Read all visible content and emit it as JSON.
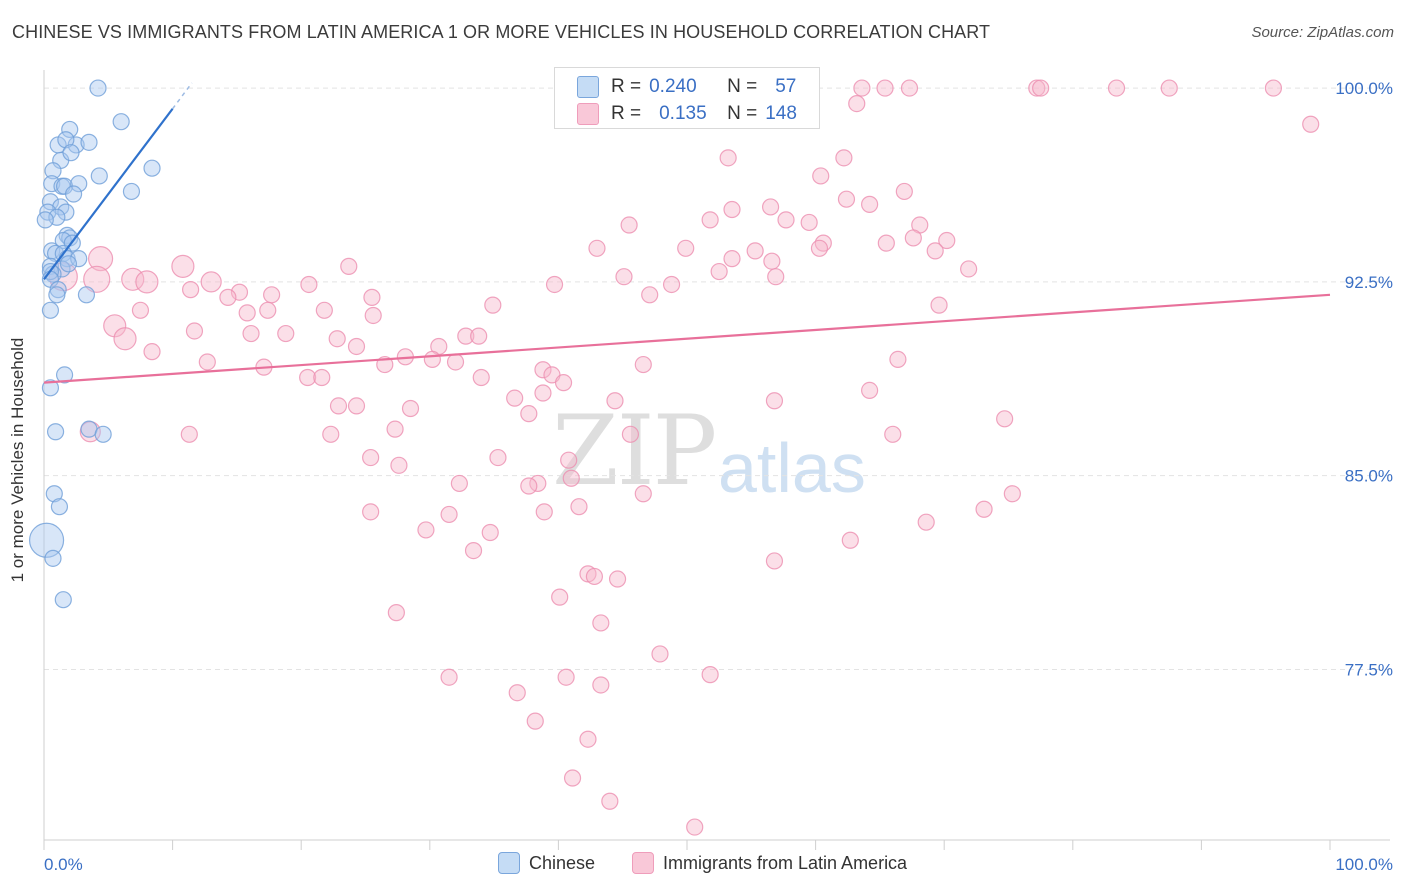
{
  "header": {
    "title": "CHINESE VS IMMIGRANTS FROM LATIN AMERICA 1 OR MORE VEHICLES IN HOUSEHOLD CORRELATION CHART",
    "source": "Source: ZipAtlas.com"
  },
  "stats": {
    "r_label": "R =",
    "n_label": "N =",
    "chinese": {
      "r": "0.240",
      "n": "57"
    },
    "latin": {
      "r": "0.135",
      "n": "148"
    }
  },
  "watermark": {
    "zip": "ZIP",
    "atlas": "atlas"
  },
  "colors": {
    "chinese_fill": "#a9c8ef",
    "chinese_stroke": "#6f9fd8",
    "chinese_line": "#2f72cc",
    "latin_fill": "#f6b8cc",
    "latin_stroke": "#ec8fb0",
    "latin_line": "#e8709a",
    "axis_label": "#3a6fc4",
    "grid": "#e3e3e3"
  },
  "chart_data": {
    "type": "scatter",
    "title": "CHINESE VS IMMIGRANTS FROM LATIN AMERICA 1 OR MORE VEHICLES IN HOUSEHOLD CORRELATION CHART",
    "xlabel": "",
    "ylabel": "1 or more Vehicles in Household",
    "x_tick_labels": [
      "0.0%",
      "100.0%"
    ],
    "y_tick_labels": [
      "100.0%",
      "92.5%",
      "85.0%",
      "77.5%"
    ],
    "y_ticks": [
      100.0,
      92.5,
      85.0,
      77.5
    ],
    "xlim": [
      0,
      100
    ],
    "ylim": [
      70.9,
      100.7
    ],
    "grid": true,
    "legend_position": "bottom-center",
    "series": [
      {
        "name": "Chinese",
        "trend": {
          "x0": 0.0,
          "y0": 92.6,
          "x1": 10.0,
          "y1": 99.2,
          "dashed_to_x": 11.5,
          "dashed_to_y": 100.2
        },
        "points": [
          [
            4.2,
            100.0,
            8
          ],
          [
            6.0,
            98.7,
            8
          ],
          [
            2.0,
            98.4,
            8
          ],
          [
            1.1,
            97.8,
            8
          ],
          [
            2.5,
            97.8,
            8
          ],
          [
            1.7,
            98.0,
            8
          ],
          [
            3.5,
            97.9,
            8
          ],
          [
            1.3,
            97.2,
            8
          ],
          [
            2.1,
            97.5,
            8
          ],
          [
            0.7,
            96.8,
            8
          ],
          [
            8.4,
            96.9,
            8
          ],
          [
            4.3,
            96.6,
            8
          ],
          [
            0.6,
            96.3,
            8
          ],
          [
            1.4,
            96.2,
            8
          ],
          [
            1.6,
            96.2,
            8
          ],
          [
            2.7,
            96.3,
            8
          ],
          [
            2.3,
            95.9,
            8
          ],
          [
            6.8,
            96.0,
            8
          ],
          [
            0.5,
            95.6,
            8
          ],
          [
            1.3,
            95.4,
            8
          ],
          [
            1.7,
            95.2,
            8
          ],
          [
            0.3,
            95.2,
            8
          ],
          [
            1.0,
            95.0,
            8
          ],
          [
            0.1,
            94.9,
            8
          ],
          [
            1.8,
            94.3,
            8
          ],
          [
            2.0,
            94.2,
            8
          ],
          [
            1.5,
            94.1,
            8
          ],
          [
            2.2,
            94.0,
            8
          ],
          [
            0.6,
            93.7,
            8
          ],
          [
            0.9,
            93.6,
            8
          ],
          [
            1.5,
            93.6,
            8
          ],
          [
            1.8,
            93.4,
            8
          ],
          [
            2.7,
            93.4,
            8
          ],
          [
            0.5,
            93.1,
            8
          ],
          [
            1.4,
            93.0,
            8
          ],
          [
            1.9,
            93.2,
            8
          ],
          [
            0.7,
            92.8,
            8
          ],
          [
            0.5,
            92.9,
            8
          ],
          [
            0.5,
            92.6,
            8
          ],
          [
            1.1,
            92.2,
            8
          ],
          [
            3.3,
            92.0,
            8
          ],
          [
            1.0,
            92.0,
            8
          ],
          [
            0.5,
            91.4,
            8
          ],
          [
            1.6,
            88.9,
            8
          ],
          [
            0.5,
            88.4,
            8
          ],
          [
            0.9,
            86.7,
            8
          ],
          [
            3.5,
            86.8,
            8
          ],
          [
            4.6,
            86.6,
            8
          ],
          [
            0.8,
            84.3,
            8
          ],
          [
            1.2,
            83.8,
            8
          ],
          [
            0.2,
            82.5,
            17
          ],
          [
            0.7,
            81.8,
            8
          ],
          [
            1.5,
            80.2,
            8
          ]
        ]
      },
      {
        "name": "Immigrants from Latin America",
        "trend": {
          "x0": 0.0,
          "y0": 88.6,
          "x1": 100.0,
          "y1": 92.0
        },
        "points": [
          [
            63.6,
            100.0,
            8
          ],
          [
            65.4,
            100.0,
            8
          ],
          [
            67.3,
            100.0,
            8
          ],
          [
            77.2,
            100.0,
            8
          ],
          [
            77.5,
            100.0,
            8
          ],
          [
            83.4,
            100.0,
            8
          ],
          [
            87.5,
            100.0,
            8
          ],
          [
            95.6,
            100.0,
            8
          ],
          [
            63.2,
            99.4,
            8
          ],
          [
            98.5,
            98.6,
            8
          ],
          [
            53.2,
            97.3,
            8
          ],
          [
            62.2,
            97.3,
            8
          ],
          [
            60.4,
            96.6,
            8
          ],
          [
            66.9,
            96.0,
            8
          ],
          [
            62.4,
            95.7,
            8
          ],
          [
            53.5,
            95.3,
            8
          ],
          [
            56.5,
            95.4,
            8
          ],
          [
            64.2,
            95.5,
            8
          ],
          [
            51.8,
            94.9,
            8
          ],
          [
            57.7,
            94.9,
            8
          ],
          [
            59.5,
            94.8,
            8
          ],
          [
            45.5,
            94.7,
            8
          ],
          [
            68.1,
            94.7,
            8
          ],
          [
            67.6,
            94.2,
            8
          ],
          [
            65.5,
            94.0,
            8
          ],
          [
            60.6,
            94.0,
            8
          ],
          [
            70.2,
            94.1,
            8
          ],
          [
            43.0,
            93.8,
            8
          ],
          [
            49.9,
            93.8,
            8
          ],
          [
            55.3,
            93.7,
            8
          ],
          [
            60.3,
            93.8,
            8
          ],
          [
            69.3,
            93.7,
            8
          ],
          [
            53.5,
            93.4,
            8
          ],
          [
            56.6,
            93.3,
            8
          ],
          [
            4.4,
            93.4,
            12
          ],
          [
            10.8,
            93.1,
            11
          ],
          [
            23.7,
            93.1,
            8
          ],
          [
            71.9,
            93.0,
            8
          ],
          [
            1.5,
            92.7,
            14
          ],
          [
            4.1,
            92.6,
            13
          ],
          [
            6.9,
            92.6,
            11
          ],
          [
            8.0,
            92.5,
            11
          ],
          [
            13.0,
            92.5,
            10
          ],
          [
            20.6,
            92.4,
            8
          ],
          [
            39.7,
            92.4,
            8
          ],
          [
            45.1,
            92.7,
            8
          ],
          [
            52.5,
            92.9,
            8
          ],
          [
            56.9,
            92.7,
            8
          ],
          [
            48.8,
            92.4,
            8
          ],
          [
            47.1,
            92.0,
            8
          ],
          [
            11.4,
            92.2,
            8
          ],
          [
            15.2,
            92.1,
            8
          ],
          [
            17.7,
            92.0,
            8
          ],
          [
            14.3,
            91.9,
            8
          ],
          [
            25.5,
            91.9,
            8
          ],
          [
            34.9,
            91.6,
            8
          ],
          [
            69.6,
            91.6,
            8
          ],
          [
            7.5,
            91.4,
            8
          ],
          [
            15.8,
            91.3,
            8
          ],
          [
            17.4,
            91.4,
            8
          ],
          [
            21.8,
            91.4,
            8
          ],
          [
            25.6,
            91.2,
            8
          ],
          [
            5.5,
            90.8,
            11
          ],
          [
            11.7,
            90.6,
            8
          ],
          [
            16.1,
            90.5,
            8
          ],
          [
            18.8,
            90.5,
            8
          ],
          [
            22.8,
            90.3,
            8
          ],
          [
            32.8,
            90.4,
            8
          ],
          [
            33.8,
            90.4,
            8
          ],
          [
            24.3,
            90.0,
            8
          ],
          [
            30.7,
            90.0,
            8
          ],
          [
            6.3,
            90.3,
            11
          ],
          [
            8.4,
            89.8,
            8
          ],
          [
            12.7,
            89.4,
            8
          ],
          [
            17.1,
            89.2,
            8
          ],
          [
            26.5,
            89.3,
            8
          ],
          [
            28.1,
            89.6,
            8
          ],
          [
            30.2,
            89.5,
            8
          ],
          [
            32.0,
            89.4,
            8
          ],
          [
            46.6,
            89.3,
            8
          ],
          [
            66.4,
            89.5,
            8
          ],
          [
            38.8,
            89.1,
            8
          ],
          [
            39.5,
            88.9,
            8
          ],
          [
            20.5,
            88.8,
            8
          ],
          [
            21.6,
            88.8,
            8
          ],
          [
            40.4,
            88.6,
            8
          ],
          [
            34.0,
            88.8,
            8
          ],
          [
            38.8,
            88.2,
            8
          ],
          [
            44.4,
            87.9,
            8
          ],
          [
            56.8,
            87.9,
            8
          ],
          [
            64.2,
            88.3,
            8
          ],
          [
            36.6,
            88.0,
            8
          ],
          [
            22.9,
            87.7,
            8
          ],
          [
            24.3,
            87.7,
            8
          ],
          [
            28.5,
            87.6,
            8
          ],
          [
            37.7,
            87.4,
            8
          ],
          [
            74.7,
            87.2,
            8
          ],
          [
            27.3,
            86.8,
            8
          ],
          [
            3.6,
            86.7,
            10
          ],
          [
            11.3,
            86.6,
            8
          ],
          [
            22.3,
            86.6,
            8
          ],
          [
            45.6,
            86.6,
            8
          ],
          [
            66.0,
            86.6,
            8
          ],
          [
            25.4,
            85.7,
            8
          ],
          [
            27.6,
            85.4,
            8
          ],
          [
            40.8,
            85.6,
            8
          ],
          [
            35.3,
            85.7,
            8
          ],
          [
            32.3,
            84.7,
            8
          ],
          [
            41.0,
            84.9,
            8
          ],
          [
            38.4,
            84.7,
            8
          ],
          [
            37.7,
            84.6,
            8
          ],
          [
            46.6,
            84.3,
            8
          ],
          [
            41.6,
            83.8,
            8
          ],
          [
            38.9,
            83.6,
            8
          ],
          [
            31.5,
            83.5,
            8
          ],
          [
            25.4,
            83.6,
            8
          ],
          [
            29.7,
            82.9,
            8
          ],
          [
            34.7,
            82.8,
            8
          ],
          [
            62.7,
            82.5,
            8
          ],
          [
            68.6,
            83.2,
            8
          ],
          [
            73.1,
            83.7,
            8
          ],
          [
            75.3,
            84.3,
            8
          ],
          [
            33.4,
            82.1,
            8
          ],
          [
            56.8,
            81.7,
            8
          ],
          [
            42.3,
            81.2,
            8
          ],
          [
            42.8,
            81.1,
            8
          ],
          [
            44.6,
            81.0,
            8
          ],
          [
            40.1,
            80.3,
            8
          ],
          [
            27.4,
            79.7,
            8
          ],
          [
            43.3,
            79.3,
            8
          ],
          [
            47.9,
            78.1,
            8
          ],
          [
            51.8,
            77.3,
            8
          ],
          [
            31.5,
            77.2,
            8
          ],
          [
            40.6,
            77.2,
            8
          ],
          [
            36.8,
            76.6,
            8
          ],
          [
            43.3,
            76.9,
            8
          ],
          [
            42.3,
            74.8,
            8
          ],
          [
            38.2,
            75.5,
            8
          ],
          [
            41.1,
            73.3,
            8
          ],
          [
            44.0,
            72.4,
            8
          ],
          [
            50.6,
            71.4,
            8
          ]
        ]
      }
    ]
  },
  "legend": {
    "items": [
      "Chinese",
      "Immigrants from Latin America"
    ]
  }
}
